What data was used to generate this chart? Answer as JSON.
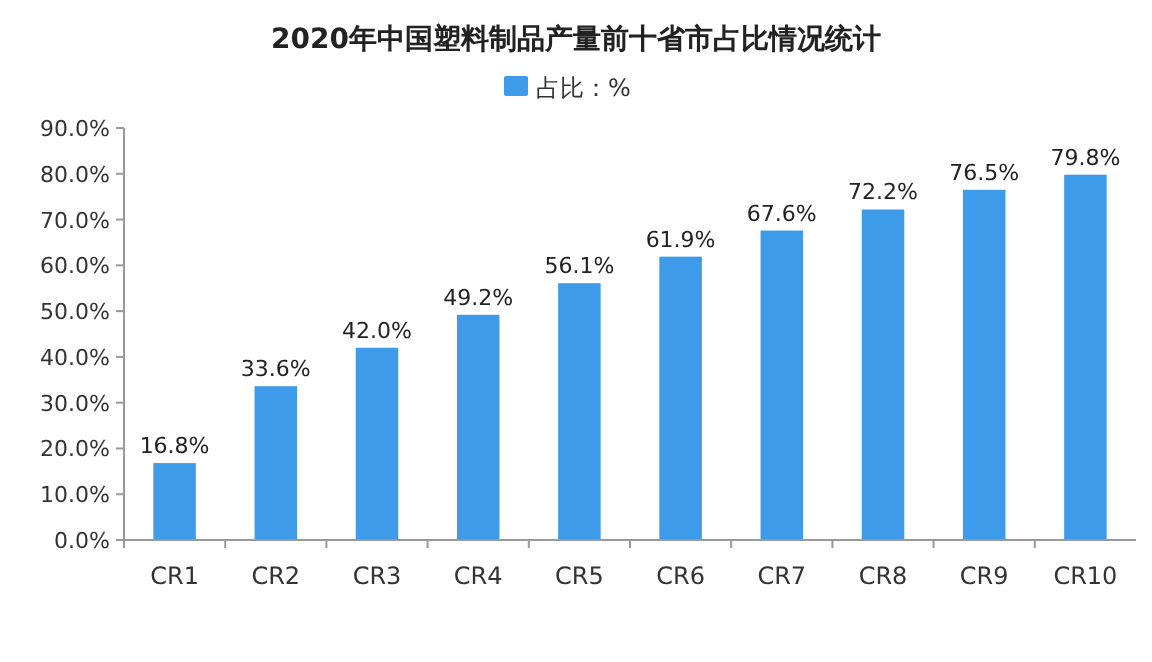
{
  "chart_data": {
    "type": "bar",
    "title": "2020年中国塑料制品产量前十省市占比情况统计",
    "categories": [
      "CR1",
      "CR2",
      "CR3",
      "CR4",
      "CR5",
      "CR6",
      "CR7",
      "CR8",
      "CR9",
      "CR10"
    ],
    "series": [
      {
        "name": "占比：%",
        "color": "#3d9be9",
        "values": [
          16.8,
          33.6,
          42.0,
          49.2,
          56.1,
          61.9,
          67.6,
          72.2,
          76.5,
          79.8
        ],
        "value_labels": [
          "16.8%",
          "33.6%",
          "42.0%",
          "49.2%",
          "56.1%",
          "61.9%",
          "67.6%",
          "72.2%",
          "76.5%",
          "79.8%"
        ]
      }
    ],
    "ylim": [
      0,
      90
    ],
    "yticks": [
      {
        "value": 0,
        "label": "0.0%"
      },
      {
        "value": 10,
        "label": "10.0%"
      },
      {
        "value": 20,
        "label": "20.0%"
      },
      {
        "value": 30,
        "label": "30.0%"
      },
      {
        "value": 40,
        "label": "40.0%"
      },
      {
        "value": 50,
        "label": "50.0%"
      },
      {
        "value": 60,
        "label": "60.0%"
      },
      {
        "value": 70,
        "label": "70.0%"
      },
      {
        "value": 80,
        "label": "80.0%"
      },
      {
        "value": 90,
        "label": "90.0%"
      }
    ],
    "grid": false,
    "legend": "top"
  }
}
